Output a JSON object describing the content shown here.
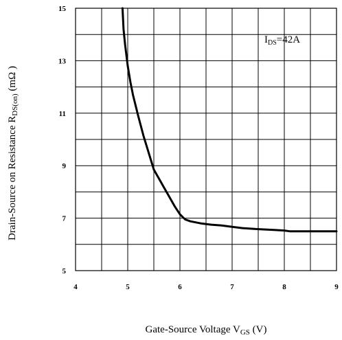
{
  "chart_data": {
    "type": "line",
    "xlabel": {
      "main": "Gate-Source Voltage V",
      "sub": "GS",
      "tail": " (V)"
    },
    "ylabel": {
      "main": "Drain-Source on Resistance R",
      "sub": "DS(on)",
      "tail": " (mΩ )"
    },
    "annotation": {
      "main": "I",
      "sub": "DS",
      "tail": "=42A"
    },
    "xlim": [
      4,
      9
    ],
    "ylim": [
      5,
      15
    ],
    "x_ticks": [
      4,
      5,
      6,
      7,
      8,
      9
    ],
    "y_ticks": [
      5,
      7,
      9,
      11,
      13,
      15
    ],
    "grid": true,
    "series": [
      {
        "x": [
          4.9,
          4.92,
          4.95,
          5.0,
          5.05,
          5.1,
          5.2,
          5.3,
          5.4,
          5.5,
          5.6,
          5.7,
          5.8,
          5.9,
          6.0,
          6.1,
          6.2,
          6.4,
          6.6,
          6.8,
          7.0,
          7.2,
          7.5,
          7.8,
          8.0,
          8.1,
          8.5,
          9.0
        ],
        "y": [
          15.0,
          14.2,
          13.6,
          12.8,
          12.2,
          11.7,
          10.9,
          10.15,
          9.5,
          8.85,
          8.5,
          8.15,
          7.8,
          7.45,
          7.15,
          6.95,
          6.88,
          6.8,
          6.75,
          6.72,
          6.67,
          6.62,
          6.58,
          6.55,
          6.53,
          6.5,
          6.5,
          6.5
        ]
      }
    ]
  }
}
